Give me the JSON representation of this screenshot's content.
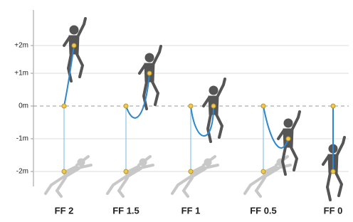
{
  "y_axis": {
    "labels": [
      "+2m",
      "+1m",
      "0m",
      "-1m",
      "-2m"
    ]
  },
  "columns": [
    {
      "label": "FF 2"
    },
    {
      "label": "FF 1.5"
    },
    {
      "label": "FF 1"
    },
    {
      "label": "FF 0.5"
    },
    {
      "label": "FF 0"
    }
  ]
}
